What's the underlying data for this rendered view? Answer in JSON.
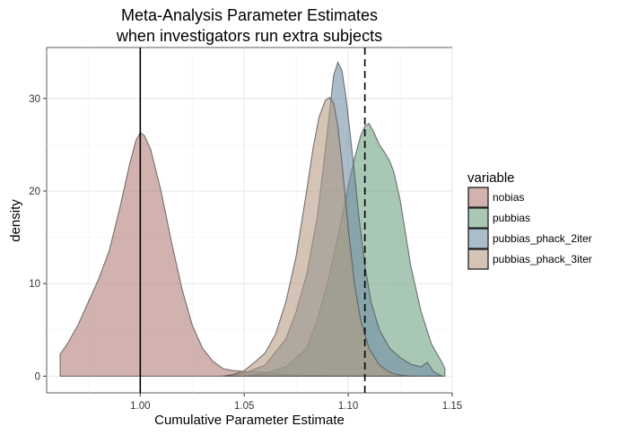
{
  "chart_data": {
    "type": "area",
    "title_line1": "Meta-Analysis Parameter Estimates",
    "title_line2": "when investigators run extra subjects",
    "xlabel": "Cumulative Parameter Estimate",
    "ylabel": "density",
    "xlim": [
      0.955,
      1.15
    ],
    "ylim": [
      -1.8,
      35.5
    ],
    "x_ticks": [
      1.0,
      1.05,
      1.1,
      1.15
    ],
    "x_tick_labels": [
      "1.00",
      "1.05",
      "1.10",
      "1.15"
    ],
    "y_ticks": [
      0,
      10,
      20,
      30
    ],
    "y_tick_labels": [
      "0",
      "10",
      "20",
      "30"
    ],
    "grid": true,
    "legend": {
      "title": "variable",
      "position": "right"
    },
    "reference_lines": [
      {
        "x": 1.0,
        "style": "solid"
      },
      {
        "x": 1.108,
        "style": "dashed"
      }
    ],
    "series": [
      {
        "name": "nobias",
        "color": "#b27a76",
        "x": [
          0.9615,
          0.965,
          0.97,
          0.975,
          0.98,
          0.985,
          0.99,
          0.995,
          0.998,
          1.0,
          1.002,
          1.005,
          1.01,
          1.015,
          1.02,
          1.025,
          1.03,
          1.035,
          1.04,
          1.045,
          1.05,
          1.055,
          1.06,
          1.065,
          1.07,
          1.075,
          1.08,
          1.085,
          1.09,
          1.095,
          1.1,
          1.105,
          1.11,
          1.115
        ],
        "values": [
          2.4,
          3.5,
          5.5,
          8.0,
          10.5,
          13.5,
          18.0,
          23.0,
          25.5,
          26.3,
          26.0,
          24.5,
          20.0,
          14.5,
          9.5,
          5.5,
          3.0,
          1.6,
          0.8,
          0.6,
          0.5,
          0.5,
          0.4,
          0.3,
          0.2,
          0.15,
          0.1,
          0.1,
          0.05,
          0.05,
          0.03,
          0.02,
          0.01,
          0.0
        ]
      },
      {
        "name": "pubbias",
        "color": "#6a9e7f",
        "x": [
          1.05,
          1.06,
          1.07,
          1.08,
          1.085,
          1.09,
          1.095,
          1.1,
          1.103,
          1.106,
          1.108,
          1.11,
          1.112,
          1.115,
          1.118,
          1.12,
          1.122,
          1.125,
          1.13,
          1.135,
          1.14,
          1.145,
          1.1465
        ],
        "values": [
          0.0,
          0.3,
          1.0,
          3.0,
          6.0,
          10.0,
          15.0,
          20.5,
          23.5,
          26.0,
          27.0,
          27.3,
          26.5,
          25.0,
          24.0,
          23.2,
          22.0,
          19.0,
          12.0,
          7.0,
          3.5,
          1.5,
          0.8
        ]
      },
      {
        "name": "pubbias_phack_2iter",
        "color": "#6f8ea3",
        "x": [
          1.04,
          1.05,
          1.06,
          1.07,
          1.075,
          1.08,
          1.085,
          1.088,
          1.091,
          1.093,
          1.095,
          1.097,
          1.099,
          1.101,
          1.103,
          1.105,
          1.108,
          1.111,
          1.115,
          1.12,
          1.125,
          1.13,
          1.135,
          1.138,
          1.141,
          1.145
        ],
        "values": [
          0.0,
          0.3,
          1.2,
          4.0,
          7.0,
          11.0,
          17.0,
          22.5,
          28.5,
          32.5,
          33.9,
          33.0,
          30.0,
          26.0,
          22.0,
          17.5,
          12.0,
          8.0,
          5.0,
          3.0,
          2.0,
          1.3,
          1.0,
          1.5,
          0.5,
          0.0
        ]
      },
      {
        "name": "pubbias_phack_3iter",
        "color": "#b59a80",
        "x": [
          1.04,
          1.045,
          1.05,
          1.055,
          1.06,
          1.065,
          1.07,
          1.075,
          1.08,
          1.083,
          1.086,
          1.089,
          1.091,
          1.093,
          1.095,
          1.097,
          1.1,
          1.103,
          1.106,
          1.11,
          1.115,
          1.12,
          1.125,
          1.13
        ],
        "values": [
          0.0,
          0.2,
          0.6,
          1.5,
          2.5,
          4.5,
          8.0,
          13.0,
          20.0,
          24.5,
          28.0,
          29.8,
          30.1,
          29.5,
          27.0,
          23.0,
          16.0,
          10.0,
          6.0,
          3.0,
          1.2,
          0.4,
          0.1,
          0.0
        ]
      }
    ]
  }
}
